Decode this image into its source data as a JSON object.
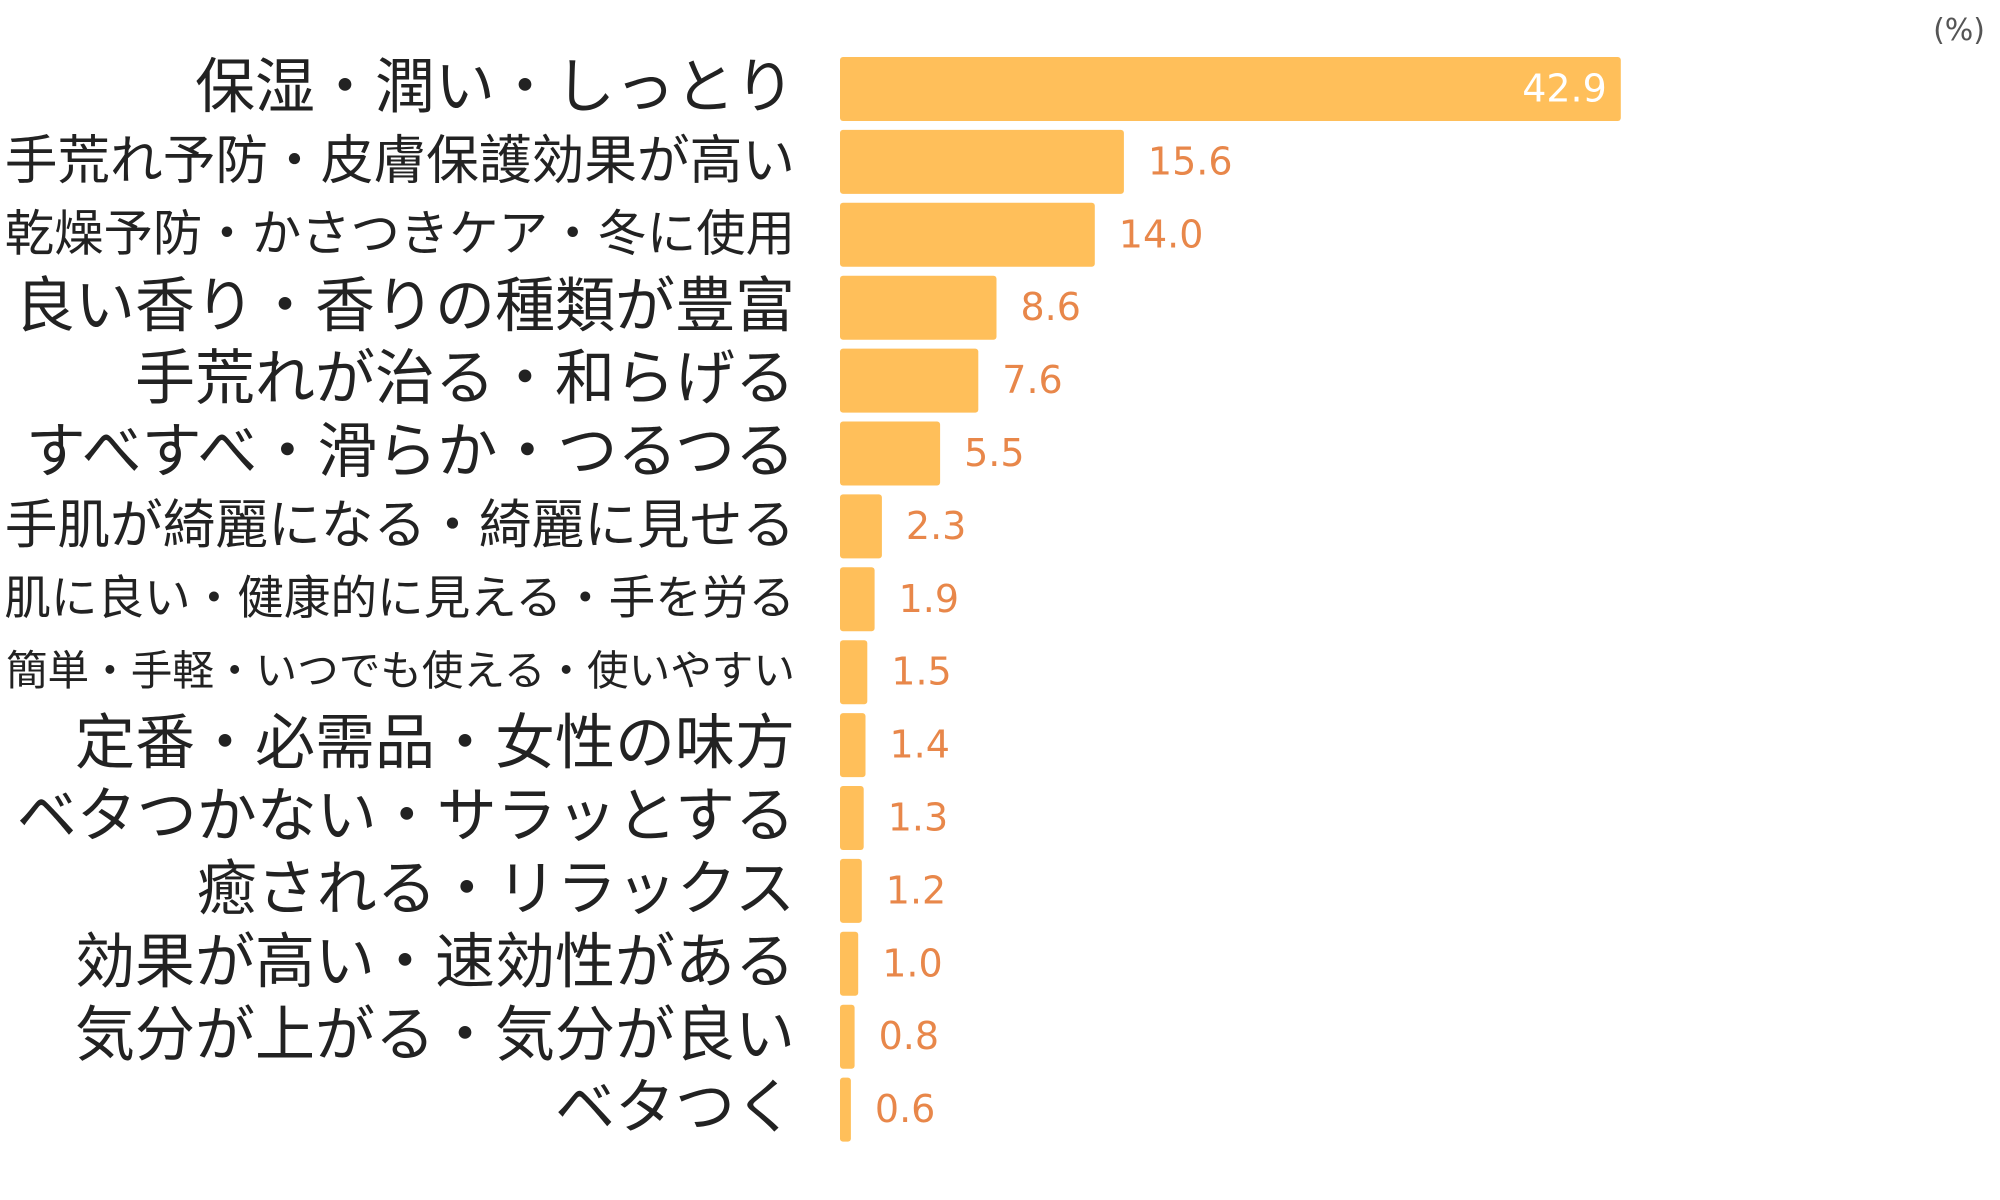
{
  "chart_data": {
    "type": "bar",
    "orientation": "horizontal",
    "unit": "(%)",
    "categories": [
      "保湿・潤い・しっとり",
      "手荒れ予防・皮膚保護効果が高い",
      "乾燥予防・かさつきケア・冬に使用",
      "良い香り・香りの種類が豊富",
      "手荒れが治る・和らげる",
      "すべすべ・滑らか・つるつる",
      "手肌が綺麗になる・綺麗に見せる",
      "肌に良い・健康的に見える・手を労る",
      "簡単・手軽・いつでも使える・使いやすい",
      "定番・必需品・女性の味方",
      "ベタつかない・サラッとする",
      "癒される・リラックス",
      "効果が高い・速効性がある",
      "気分が上がる・気分が良い",
      "ベタつく"
    ],
    "values": [
      42.9,
      15.6,
      14.0,
      8.6,
      7.6,
      5.5,
      2.3,
      1.9,
      1.5,
      1.4,
      1.3,
      1.2,
      1.0,
      0.8,
      0.6
    ],
    "value_labels": [
      "42.9",
      "15.6",
      "14.0",
      "8.6",
      "7.6",
      "5.5",
      "2.3",
      "1.9",
      "1.5",
      "1.4",
      "1.3",
      "1.2",
      "1.0",
      "0.8",
      "0.6"
    ],
    "xlim": [
      0,
      60
    ],
    "grid": false,
    "legend": false,
    "colors": {
      "bar": "#FFBF5A",
      "value_label": "#E8874A",
      "value_label_inside": "#FFFFFF"
    }
  }
}
